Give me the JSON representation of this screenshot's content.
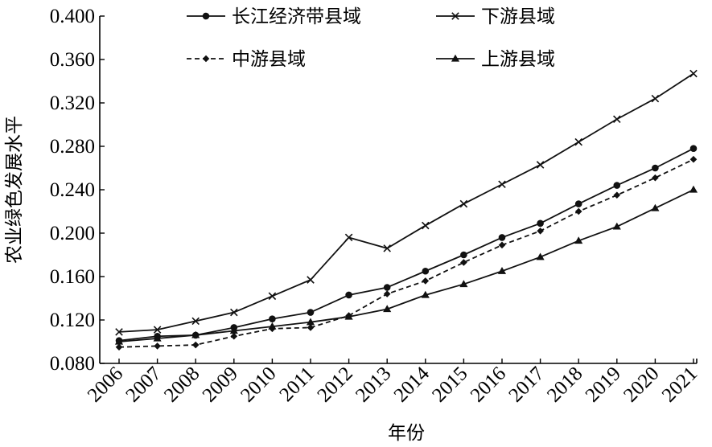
{
  "chart_data": {
    "type": "line",
    "title": "",
    "xlabel": "年份",
    "ylabel": "农业绿色发展水平",
    "categories": [
      "2006",
      "2007",
      "2008",
      "2009",
      "2010",
      "2011",
      "2012",
      "2013",
      "2014",
      "2015",
      "2016",
      "2017",
      "2018",
      "2019",
      "2020",
      "2021"
    ],
    "ylim": [
      0.08,
      0.4
    ],
    "yticks": [
      "0.080",
      "0.120",
      "0.160",
      "0.200",
      "0.240",
      "0.280",
      "0.320",
      "0.360",
      "0.400"
    ],
    "grid": false,
    "legend_position": "top",
    "series": [
      {
        "name": "长江经济带县域",
        "marker": "circle",
        "dash": "solid",
        "values": [
          0.101,
          0.105,
          0.106,
          0.113,
          0.121,
          0.127,
          0.143,
          0.15,
          0.165,
          0.18,
          0.196,
          0.209,
          0.227,
          0.244,
          0.26,
          0.278
        ]
      },
      {
        "name": "下游县域",
        "marker": "x",
        "dash": "solid",
        "values": [
          0.109,
          0.111,
          0.119,
          0.127,
          0.142,
          0.157,
          0.196,
          0.186,
          0.207,
          0.227,
          0.245,
          0.263,
          0.284,
          0.305,
          0.324,
          0.347
        ]
      },
      {
        "name": "中游县域",
        "marker": "diamond",
        "dash": "dashed",
        "values": [
          0.095,
          0.096,
          0.097,
          0.105,
          0.112,
          0.113,
          0.124,
          0.144,
          0.156,
          0.173,
          0.189,
          0.202,
          0.22,
          0.235,
          0.251,
          0.268
        ]
      },
      {
        "name": "上游县域",
        "marker": "triangle",
        "dash": "solid",
        "values": [
          0.1,
          0.103,
          0.106,
          0.11,
          0.114,
          0.118,
          0.123,
          0.13,
          0.143,
          0.153,
          0.165,
          0.178,
          0.193,
          0.206,
          0.223,
          0.24
        ]
      }
    ]
  }
}
